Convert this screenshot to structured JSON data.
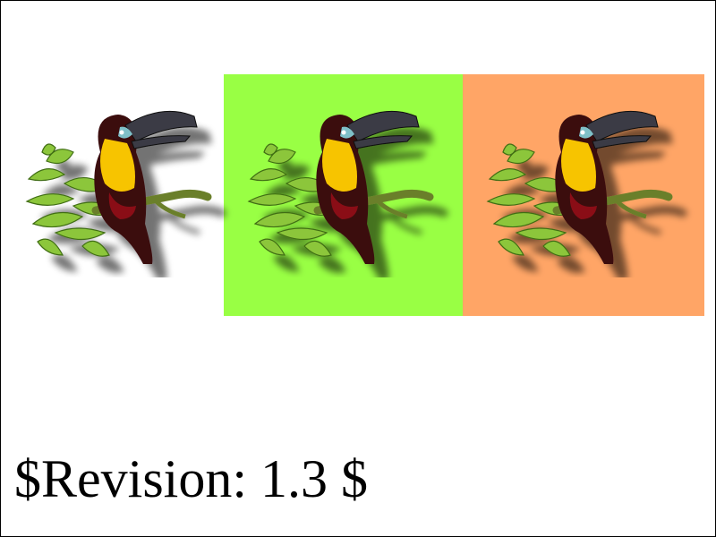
{
  "revision_text": "$Revision: 1.3 $",
  "images": [
    {
      "name": "toucan-plain",
      "background": "none"
    },
    {
      "name": "toucan-on-green",
      "background": "#99ff44"
    },
    {
      "name": "toucan-on-orange",
      "background": "#ffa566"
    }
  ],
  "colors": {
    "green": "#99ff44",
    "orange": "#ffa566",
    "body_yellow": "#f7c400",
    "plumage": "#3a0a10",
    "beak": "#3a3a44",
    "leaf": "#8cc63a"
  }
}
